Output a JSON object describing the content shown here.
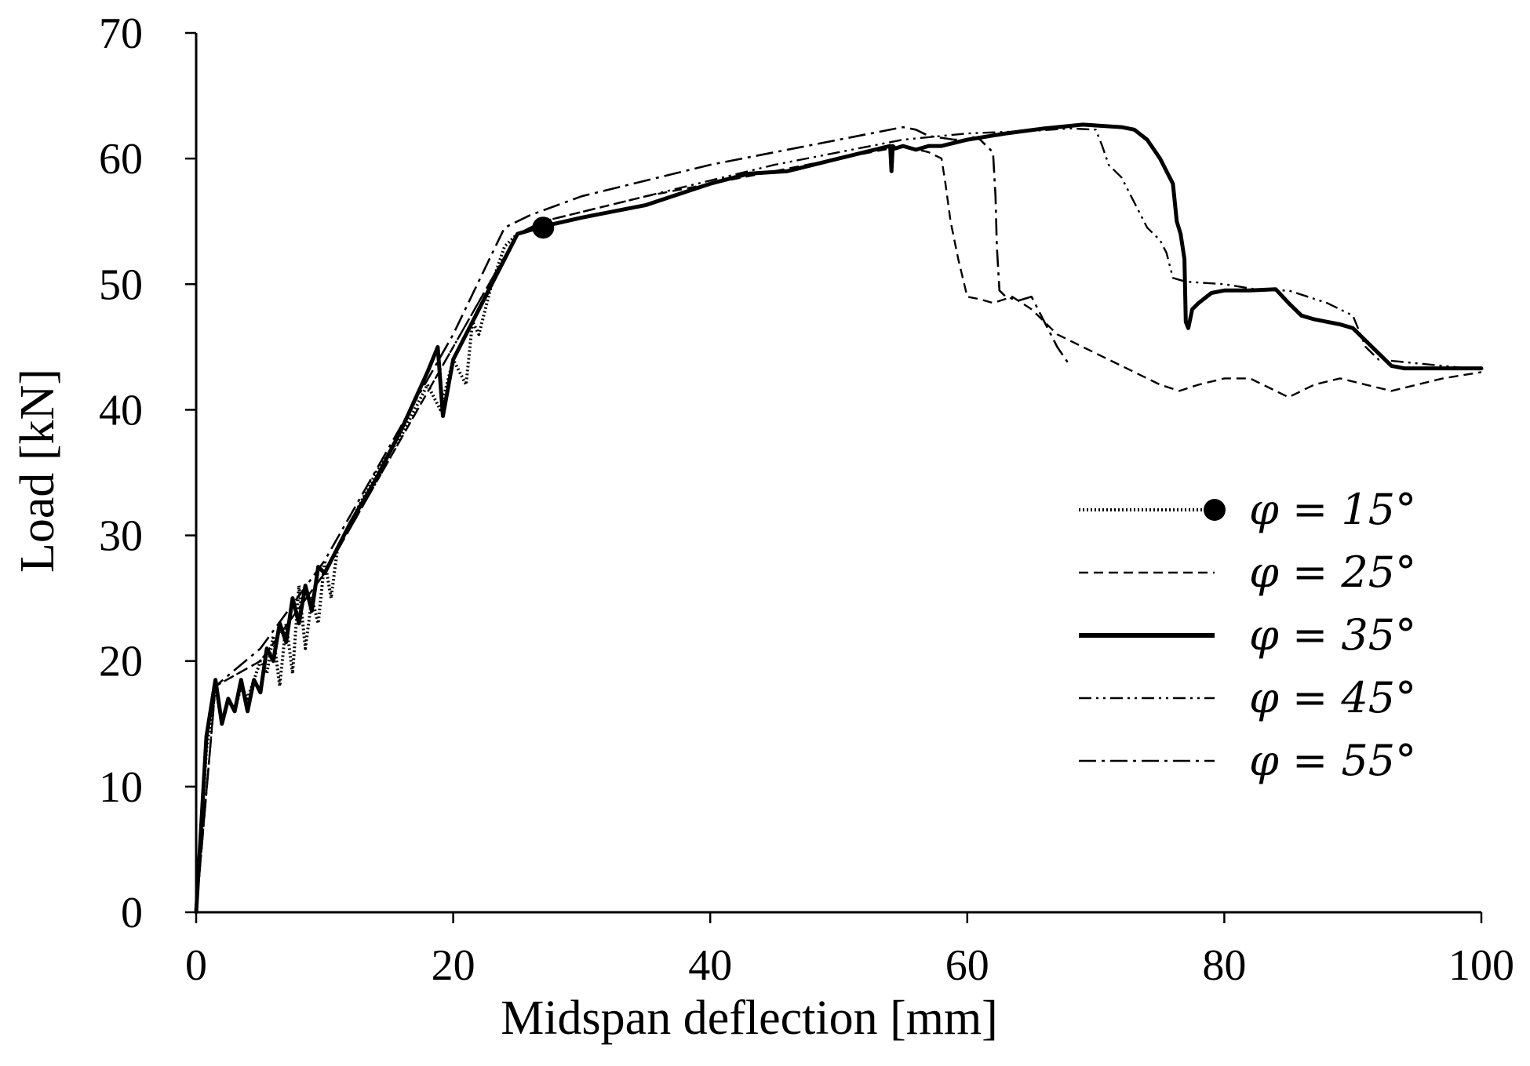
{
  "chart_data": {
    "type": "line",
    "title": "",
    "xlabel": "Midspan deflection [mm]",
    "ylabel": "Load [kN]",
    "xlim": [
      0,
      100
    ],
    "ylim": [
      0,
      70
    ],
    "xticks": [
      0,
      20,
      40,
      60,
      80,
      100
    ],
    "yticks": [
      0,
      10,
      20,
      30,
      40,
      50,
      60,
      70
    ],
    "grid": false,
    "legend_position": "center-right",
    "series": [
      {
        "name": "φ = 15°",
        "style": "dotted-marker",
        "x": [
          0,
          0.8,
          1.5,
          2.0,
          2.5,
          3.0,
          3.5,
          4.0,
          5.0,
          5.5,
          6.0,
          6.5,
          7.0,
          7.5,
          8.0,
          8.5,
          9.0,
          9.5,
          10.0,
          10.5,
          11.0,
          12,
          14,
          16,
          18,
          19,
          20,
          21,
          21.5,
          22,
          23,
          24,
          25,
          26,
          27
        ],
        "y": [
          0,
          13,
          18,
          15,
          17,
          16,
          18,
          17,
          20,
          19,
          22,
          18,
          23,
          19,
          26,
          21,
          25,
          23,
          28,
          25,
          29,
          31,
          35,
          38,
          42,
          40,
          44,
          42,
          47,
          46,
          50,
          53,
          54,
          54.3,
          54.5
        ]
      },
      {
        "name": "φ = 25°",
        "style": "dashed",
        "x": [
          0,
          1.5,
          5,
          10,
          15,
          20,
          25,
          27,
          35,
          45,
          55,
          57,
          58,
          58.3,
          58.7,
          59.3,
          60,
          61,
          62,
          63.5,
          65,
          67,
          70,
          73,
          75,
          76.5,
          78,
          80,
          82,
          83,
          84,
          85,
          87,
          89,
          91,
          93,
          95,
          97,
          100
        ],
        "y": [
          0,
          18,
          20,
          27,
          36,
          45,
          54,
          55,
          57,
          59,
          61,
          60.5,
          60,
          58,
          55,
          52,
          49,
          48.8,
          48.5,
          49,
          48,
          46,
          44.5,
          43,
          42,
          41.5,
          42,
          42.5,
          42.5,
          42,
          41.5,
          41,
          42,
          42.5,
          42,
          41.5,
          42,
          42.5,
          43
        ]
      },
      {
        "name": "φ = 35°",
        "style": "solid",
        "x": [
          0,
          0.8,
          1.5,
          2.0,
          2.5,
          3.0,
          3.5,
          4.0,
          4.5,
          5.0,
          5.5,
          6.0,
          6.5,
          7.0,
          7.5,
          8.0,
          8.5,
          9.0,
          9.5,
          10,
          12,
          14,
          16,
          18,
          18.8,
          19.2,
          20,
          21,
          22,
          23,
          24,
          25,
          26,
          27,
          30,
          35,
          40,
          43,
          46,
          50,
          54,
          54.1,
          54.2,
          54.4,
          55,
          56,
          57,
          58,
          60,
          63,
          66,
          69,
          72,
          73,
          74,
          75,
          76,
          76.3,
          76.6,
          76.9,
          77.0,
          77.2,
          77.5,
          78,
          79,
          80,
          82,
          84,
          85,
          86,
          87,
          88,
          89,
          90,
          91,
          92,
          93,
          94,
          96,
          98,
          100
        ],
        "y": [
          0,
          14,
          18.5,
          15,
          17,
          16,
          18.5,
          16,
          18.5,
          17.5,
          21,
          20,
          23,
          21.5,
          25,
          23,
          26,
          24,
          27.5,
          27,
          31,
          34.5,
          38.5,
          43,
          45,
          39.5,
          44,
          46,
          48,
          50,
          52,
          54,
          54.3,
          54.6,
          55.3,
          56.3,
          58,
          58.8,
          59,
          60,
          61,
          59,
          61,
          60.8,
          61,
          60.7,
          61,
          61,
          61.5,
          62,
          62.4,
          62.7,
          62.5,
          62.3,
          61.5,
          60,
          58,
          55,
          54,
          52,
          47,
          46.5,
          48,
          48.5,
          49.3,
          49.5,
          49.5,
          49.6,
          48.5,
          47.5,
          47.2,
          47,
          46.8,
          46.5,
          45.5,
          44.5,
          43.5,
          43.3,
          43.3,
          43.3,
          43.3
        ]
      },
      {
        "name": "φ = 45°",
        "style": "dash-dot-dot",
        "x": [
          0,
          1.5,
          5,
          10,
          15,
          20,
          25,
          27,
          35,
          45,
          55,
          60,
          65,
          68,
          70,
          70.5,
          71,
          72,
          73,
          74,
          75,
          75.5,
          76,
          77,
          80,
          83,
          85,
          88,
          90,
          91,
          92,
          94,
          97,
          100
        ],
        "y": [
          0,
          18,
          20,
          27,
          36,
          45,
          54,
          55,
          57,
          59.5,
          61.5,
          62,
          62.2,
          62.4,
          62.3,
          61,
          59.5,
          58.5,
          56.5,
          54.5,
          53.5,
          52.5,
          50.5,
          50.2,
          50,
          49.5,
          49.5,
          48.5,
          47.5,
          45,
          44,
          43.8,
          43.5,
          43.2
        ]
      },
      {
        "name": "φ = 55°",
        "style": "dash-dot",
        "x": [
          0,
          1.5,
          5,
          10,
          15,
          20,
          24,
          26,
          30,
          40,
          50,
          55,
          56,
          57,
          59,
          60,
          60.5,
          61,
          61.5,
          62,
          62.2,
          62.3,
          62.5,
          63,
          64,
          65,
          66,
          67,
          68
        ],
        "y": [
          0,
          18,
          21,
          28,
          37,
          46,
          54.5,
          55.5,
          57,
          59.5,
          61.5,
          62.5,
          62.3,
          61.8,
          61.5,
          61.5,
          61.7,
          61.5,
          61,
          60.5,
          57,
          53,
          49.5,
          49,
          48.7,
          49,
          47,
          45,
          43.5
        ]
      }
    ],
    "marker": {
      "series": "φ = 15°",
      "x": 27,
      "y": 54.5
    }
  }
}
